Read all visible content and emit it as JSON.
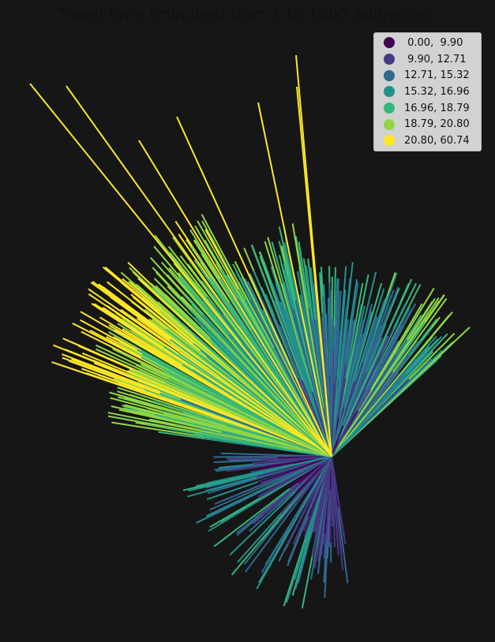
{
  "chart_data": {
    "type": "line",
    "title": "Travel time (minutes) from 1 to 1000 addresses.",
    "xlabel": "",
    "ylabel": "",
    "grid": false,
    "legend_position": "top-right",
    "background_color": "#161616",
    "origin_count": 1,
    "destination_count": 1000,
    "classes": [
      {
        "label": " 0.00,  9.90",
        "range": [
          0.0,
          9.9
        ],
        "color": "#440154"
      },
      {
        "label": " 9.90, 12.71",
        "range": [
          9.9,
          12.71
        ],
        "color": "#443983"
      },
      {
        "label": "12.71, 15.32",
        "range": [
          12.71,
          15.32
        ],
        "color": "#31688e"
      },
      {
        "label": "15.32, 16.96",
        "range": [
          15.32,
          16.96
        ],
        "color": "#21918c"
      },
      {
        "label": "16.96, 18.79",
        "range": [
          16.96,
          18.79
        ],
        "color": "#35b779"
      },
      {
        "label": "18.79, 20.80",
        "range": [
          18.79,
          20.8
        ],
        "color": "#90d743"
      },
      {
        "label": "20.80, 60.74",
        "range": [
          20.8,
          60.74
        ],
        "color": "#fde725"
      }
    ]
  }
}
